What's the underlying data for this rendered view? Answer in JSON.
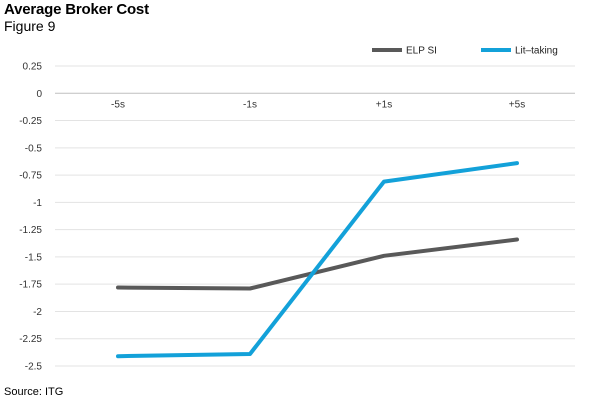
{
  "header": {
    "title": "Average Broker Cost",
    "subtitle": "Figure 9"
  },
  "footer": {
    "source": "Source: ITG"
  },
  "chart_data": {
    "type": "line",
    "categories": [
      "-5s",
      "-1s",
      "+1s",
      "+5s"
    ],
    "series": [
      {
        "name": "ELP SI",
        "color": "#595959",
        "values": [
          -1.78,
          -1.79,
          -1.49,
          -1.34
        ]
      },
      {
        "name": "Lit–taking",
        "color": "#13A1D9",
        "values": [
          -2.41,
          -2.39,
          -0.81,
          -0.64
        ]
      }
    ],
    "yticks": [
      0.25,
      0,
      -0.25,
      -0.5,
      -0.75,
      -1,
      -1.25,
      -1.5,
      -1.75,
      -2,
      -2.25,
      -2.5
    ],
    "ytick_labels": [
      "0.25",
      "0",
      "-0.25",
      "-0.5",
      "-0.75",
      "-1",
      "-1.25",
      "-1.5",
      "-1.75",
      "-2",
      "-2.25",
      "-2.5"
    ],
    "ylim": [
      -2.5,
      0.25
    ],
    "grid": true,
    "legend": "top-right",
    "xaxis_position": "at-zero"
  }
}
